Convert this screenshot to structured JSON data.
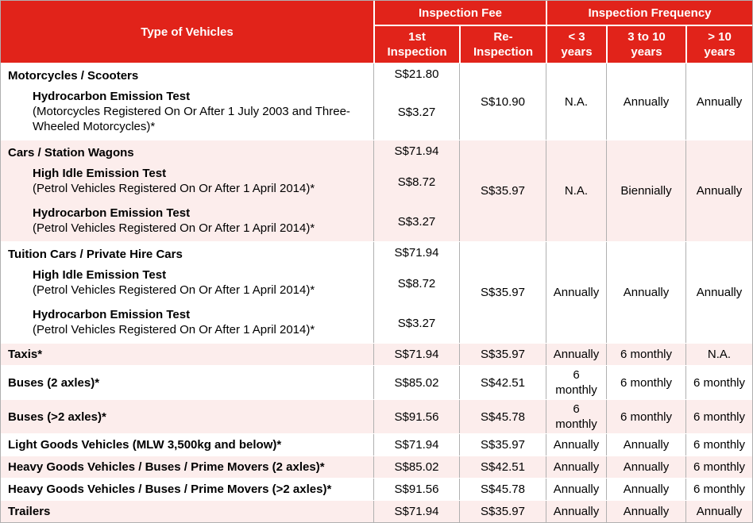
{
  "header": {
    "type_col": "Type of Vehicles",
    "fee_group": "Inspection Fee",
    "freq_group": "Inspection Frequency",
    "sub_cols": [
      "1st Inspection",
      "Re-Inspection",
      "< 3 years",
      "3 to 10 years",
      "> 10 years"
    ]
  },
  "table": {
    "rows": [
      {
        "blocks": [
          {
            "title": "Motorcycles / Scooters",
            "fee": "S$21.80"
          },
          {
            "title": "Hydrocarbon Emission Test",
            "desc": "(Motorcycles Registered On Or After 1 July 2003 and Three-Wheeled Motorcycles)*",
            "fee": "S$3.27"
          }
        ],
        "re_inspection": "S$10.90",
        "frequency": [
          "N.A.",
          "Annually",
          "Annually"
        ]
      },
      {
        "blocks": [
          {
            "title": "Cars / Station Wagons",
            "fee": "S$71.94"
          },
          {
            "title": "High Idle Emission Test",
            "desc": "(Petrol Vehicles Registered On Or After 1 April 2014)*",
            "fee": "S$8.72"
          },
          {
            "title": "Hydrocarbon Emission Test",
            "desc": "(Petrol Vehicles Registered On Or After 1 April 2014)*",
            "fee": "S$3.27"
          }
        ],
        "re_inspection": "S$35.97",
        "frequency": [
          "N.A.",
          "Biennially",
          "Annually"
        ]
      },
      {
        "blocks": [
          {
            "title": "Tuition Cars / Private Hire Cars",
            "fee": "S$71.94"
          },
          {
            "title": "High Idle Emission Test",
            "desc": "(Petrol Vehicles Registered On Or After 1 April 2014)*",
            "fee": "S$8.72"
          },
          {
            "title": "Hydrocarbon Emission Test",
            "desc": "(Petrol Vehicles Registered On Or After 1 April 2014)*",
            "fee": "S$3.27"
          }
        ],
        "re_inspection": "S$35.97",
        "frequency": [
          "Annually",
          "Annually",
          "Annually"
        ]
      },
      {
        "blocks": [
          {
            "title": "Taxis*",
            "fee": "S$71.94"
          }
        ],
        "re_inspection": "S$35.97",
        "frequency": [
          "Annually",
          "6 monthly",
          "N.A."
        ]
      },
      {
        "blocks": [
          {
            "title": "Buses (2 axles)*",
            "fee": "S$85.02"
          }
        ],
        "re_inspection": "S$42.51",
        "frequency": [
          "6 monthly",
          "6 monthly",
          "6 monthly"
        ]
      },
      {
        "blocks": [
          {
            "title": "Buses (>2 axles)*",
            "fee": "S$91.56"
          }
        ],
        "re_inspection": "S$45.78",
        "frequency": [
          "6 monthly",
          "6 monthly",
          "6 monthly"
        ]
      },
      {
        "blocks": [
          {
            "title": "Light Goods Vehicles (MLW 3,500kg and below)*",
            "fee": "S$71.94"
          }
        ],
        "re_inspection": "S$35.97",
        "frequency": [
          "Annually",
          "Annually",
          "6 monthly"
        ]
      },
      {
        "blocks": [
          {
            "title": "Heavy Goods Vehicles / Buses / Prime Movers (2 axles)*",
            "fee": "S$85.02"
          }
        ],
        "re_inspection": "S$42.51",
        "frequency": [
          "Annually",
          "Annually",
          "6 monthly"
        ]
      },
      {
        "blocks": [
          {
            "title": "Heavy Goods Vehicles / Buses / Prime Movers (>2 axles)*",
            "fee": "S$91.56"
          }
        ],
        "re_inspection": "S$45.78",
        "frequency": [
          "Annually",
          "Annually",
          "6 monthly"
        ]
      },
      {
        "blocks": [
          {
            "title": "Trailers",
            "fee": "S$71.94"
          }
        ],
        "re_inspection": "S$35.97",
        "frequency": [
          "Annually",
          "Annually",
          "Annually"
        ]
      }
    ]
  },
  "colors": {
    "header_red": "#e1231a",
    "row_pink": "#fcedec",
    "grid_line": "#b0b0b0",
    "header_text": "#ffffff",
    "body_text": "#000000"
  }
}
